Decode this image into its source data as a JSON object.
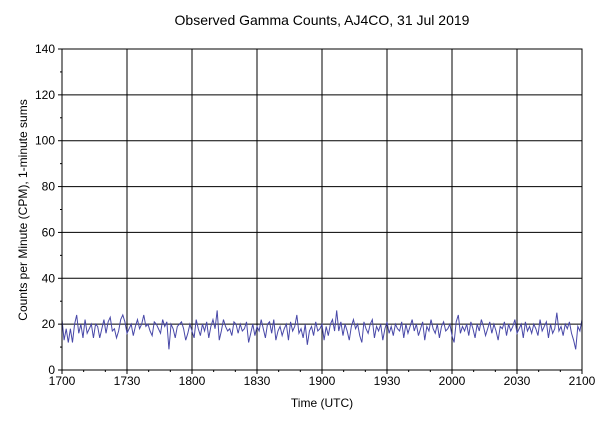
{
  "chart_data": {
    "type": "line",
    "title": "Observed Gamma Counts, AJ4CO, 31 Jul 2019",
    "xlabel": "Time (UTC)",
    "ylabel": "Counts per Minute (CPM), 1-minute sums",
    "ylim": [
      0,
      140
    ],
    "yticks": [
      "0",
      "20",
      "40",
      "60",
      "80",
      "100",
      "120",
      "140"
    ],
    "xticks": [
      "1700",
      "1730",
      "1800",
      "1830",
      "1900",
      "1930",
      "2000",
      "2030",
      "2100"
    ],
    "x_range_minutes": [
      0,
      240
    ],
    "grid": true,
    "legend": "none",
    "line_color": "#4848a8",
    "series": [
      {
        "values": [
          22,
          13,
          18,
          12,
          18,
          12,
          20,
          24,
          16,
          20,
          14,
          22,
          16,
          18,
          20,
          14,
          20,
          19,
          14,
          18,
          22,
          16,
          21,
          23,
          17,
          18,
          14,
          17,
          22,
          24,
          21,
          16,
          18,
          20,
          15,
          19,
          22,
          18,
          20,
          24,
          19,
          20,
          17,
          15,
          21,
          20,
          18,
          16,
          22,
          19,
          21,
          9,
          20,
          18,
          14,
          19,
          20,
          21,
          18,
          13,
          16,
          20,
          17,
          14,
          22,
          18,
          15,
          20,
          17,
          21,
          14,
          19,
          22,
          18,
          26,
          13,
          17,
          22,
          19,
          17,
          18,
          15,
          21,
          20,
          16,
          20,
          17,
          18,
          21,
          12,
          16,
          20,
          15,
          19,
          17,
          22,
          18,
          14,
          20,
          21,
          16,
          22,
          13,
          17,
          19,
          15,
          18,
          20,
          13,
          21,
          17,
          19,
          24,
          16,
          18,
          14,
          20,
          11,
          17,
          19,
          15,
          21,
          17,
          18,
          20,
          13,
          19,
          15,
          20,
          22,
          17,
          26,
          17,
          21,
          15,
          20,
          17,
          13,
          19,
          22,
          18,
          20,
          15,
          12,
          21,
          18,
          16,
          20,
          22,
          14,
          19,
          17,
          20,
          13,
          18,
          21,
          16,
          19,
          15,
          20,
          18,
          17,
          21,
          14,
          20,
          16,
          19,
          22,
          17,
          20,
          15,
          18,
          21,
          13,
          19,
          17,
          22,
          18,
          16,
          20,
          14,
          19,
          21,
          17,
          18,
          20,
          15,
          12,
          21,
          24,
          16,
          19,
          17,
          20,
          15,
          21,
          18,
          14,
          20,
          17,
          22,
          19,
          15,
          18,
          21,
          16,
          20,
          17,
          13,
          19,
          18,
          21,
          15,
          20,
          17,
          19,
          22,
          16,
          18,
          20,
          14,
          21,
          17,
          19,
          16,
          20,
          18,
          15,
          22,
          17,
          19,
          21,
          14,
          20,
          16,
          18,
          25,
          17,
          19,
          15,
          20,
          18,
          21,
          16,
          13,
          9,
          19,
          17,
          22
        ]
      }
    ]
  }
}
